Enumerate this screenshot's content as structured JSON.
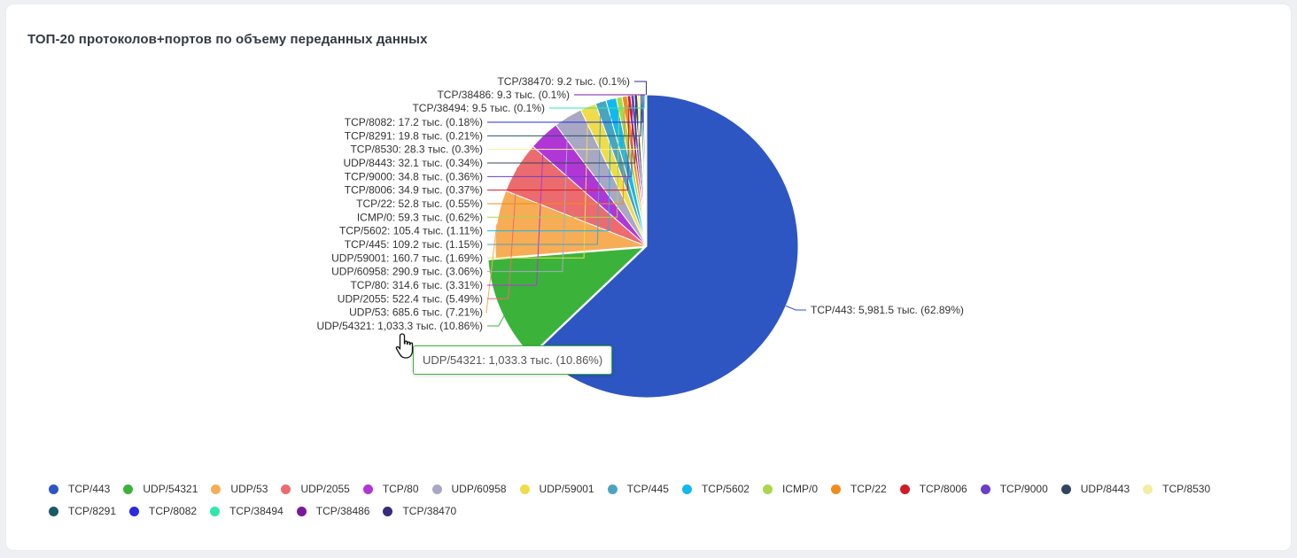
{
  "card": {
    "title": "ТОП-20 протоколов+портов по объему переданных данных"
  },
  "tooltip": {
    "text": "UDP/54321: 1,033.3 тыс. (10.86%)",
    "border_color": "#3bb33b"
  },
  "chart_data": {
    "type": "pie",
    "title": "ТОП-20 протоколов+портов по объему переданных данных",
    "unit": "тыс.",
    "legend_position": "bottom-left",
    "slices": [
      {
        "name": "TCP/443",
        "value": 5981.5,
        "label": "TCP/443: 5,981.5 тыс. (62.89%)",
        "color": "#2e56c2"
      },
      {
        "name": "UDP/54321",
        "value": 1033.3,
        "label": "UDP/54321: 1,033.3 тыс. (10.86%)",
        "color": "#3bb33b"
      },
      {
        "name": "UDP/53",
        "value": 685.6,
        "label": "UDP/53: 685.6 тыс. (7.21%)",
        "color": "#f6ad55"
      },
      {
        "name": "UDP/2055",
        "value": 522.4,
        "label": "UDP/2055: 522.4 тыс. (5.49%)",
        "color": "#ec6b6e"
      },
      {
        "name": "TCP/80",
        "value": 314.6,
        "label": "TCP/80: 314.6 тыс. (3.31%)",
        "color": "#b136d6"
      },
      {
        "name": "UDP/60958",
        "value": 290.9,
        "label": "UDP/60958: 290.9 тыс. (3.06%)",
        "color": "#a8a8c4"
      },
      {
        "name": "UDP/59001",
        "value": 160.7,
        "label": "UDP/59001: 160.7 тыс. (1.69%)",
        "color": "#f0dc4a"
      },
      {
        "name": "TCP/445",
        "value": 109.2,
        "label": "TCP/445: 109.2 тыс. (1.15%)",
        "color": "#4ba3bf"
      },
      {
        "name": "TCP/5602",
        "value": 105.4,
        "label": "TCP/5602: 105.4 тыс. (1.11%)",
        "color": "#12b9ee"
      },
      {
        "name": "ICMP/0",
        "value": 59.3,
        "label": "ICMP/0: 59.3 тыс. (0.62%)",
        "color": "#a8d84a"
      },
      {
        "name": "TCP/22",
        "value": 52.8,
        "label": "TCP/22: 52.8 тыс. (0.55%)",
        "color": "#f08c1c"
      },
      {
        "name": "TCP/8006",
        "value": 34.9,
        "label": "TCP/8006: 34.9 тыс. (0.37%)",
        "color": "#d01c24"
      },
      {
        "name": "TCP/9000",
        "value": 34.8,
        "label": "TCP/9000: 34.8 тыс. (0.36%)",
        "color": "#6a3ec8"
      },
      {
        "name": "UDP/8443",
        "value": 32.1,
        "label": "UDP/8443: 32.1 тыс. (0.34%)",
        "color": "#34445a"
      },
      {
        "name": "TCP/8530",
        "value": 28.3,
        "label": "TCP/8530: 28.3 тыс. (0.3%)",
        "color": "#f3eea0"
      },
      {
        "name": "TCP/8291",
        "value": 19.8,
        "label": "TCP/8291: 19.8 тыс. (0.21%)",
        "color": "#1c5a6a"
      },
      {
        "name": "TCP/8082",
        "value": 17.2,
        "label": "TCP/8082: 17.2 тыс. (0.18%)",
        "color": "#2a2ae0"
      },
      {
        "name": "TCP/38494",
        "value": 9.5,
        "label": "TCP/38494: 9.5 тыс. (0.1%)",
        "color": "#2ee8a8"
      },
      {
        "name": "TCP/38486",
        "value": 9.3,
        "label": "TCP/38486: 9.3 тыс. (0.1%)",
        "color": "#7a1a9a"
      },
      {
        "name": "TCP/38470",
        "value": 9.2,
        "label": "TCP/38470: 9.2 тыс. (0.1%)",
        "color": "#3a2a7a"
      }
    ]
  }
}
